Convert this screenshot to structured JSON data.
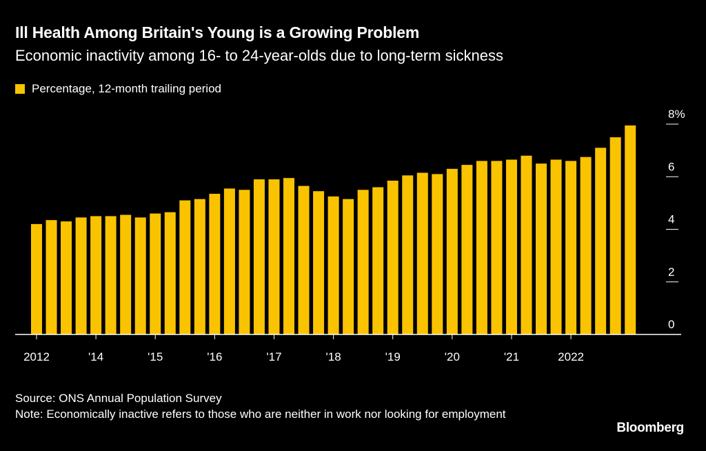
{
  "title": "Ill Health Among Britain's Young is a Growing Problem",
  "subtitle": "Economic inactivity among 16- to 24-year-olds due to long-term sickness",
  "legend": {
    "label": "Percentage, 12-month trailing period",
    "color": "#f9c300"
  },
  "footer": {
    "source": "Source: ONS Annual Population Survey",
    "note": "Note: Economically inactive refers to those who are neither in work nor looking for employment",
    "brand": "Bloomberg"
  },
  "chart_data": {
    "type": "bar",
    "title": "Ill Health Among Britain's Young is a Growing Problem",
    "xlabel": "",
    "ylabel": "",
    "ylim": [
      0,
      8
    ],
    "yticks": [
      {
        "value": 0,
        "label": "0"
      },
      {
        "value": 2,
        "label": "2"
      },
      {
        "value": 4,
        "label": "4"
      },
      {
        "value": 6,
        "label": "6"
      },
      {
        "value": 8,
        "label": "8%"
      }
    ],
    "xticks": [
      {
        "index": 0,
        "label": "2012"
      },
      {
        "index": 4,
        "label": "'14"
      },
      {
        "index": 8,
        "label": "'15"
      },
      {
        "index": 12,
        "label": "'16"
      },
      {
        "index": 16,
        "label": "'17"
      },
      {
        "index": 20,
        "label": "'18"
      },
      {
        "index": 24,
        "label": "'19"
      },
      {
        "index": 28,
        "label": "'20"
      },
      {
        "index": 32,
        "label": "'21"
      },
      {
        "index": 36,
        "label": "2022"
      }
    ],
    "series": [
      {
        "name": "Percentage, 12-month trailing period",
        "color": "#f9c300",
        "values": [
          4.2,
          4.35,
          4.3,
          4.45,
          4.5,
          4.5,
          4.55,
          4.45,
          4.6,
          4.65,
          5.1,
          5.15,
          5.35,
          5.55,
          5.5,
          5.9,
          5.9,
          5.95,
          5.65,
          5.45,
          5.25,
          5.15,
          5.5,
          5.6,
          5.85,
          6.05,
          6.15,
          6.1,
          6.3,
          6.45,
          6.6,
          6.6,
          6.65,
          6.8,
          6.5,
          6.65,
          6.6,
          6.75,
          7.1,
          7.5,
          7.95
        ]
      }
    ]
  }
}
